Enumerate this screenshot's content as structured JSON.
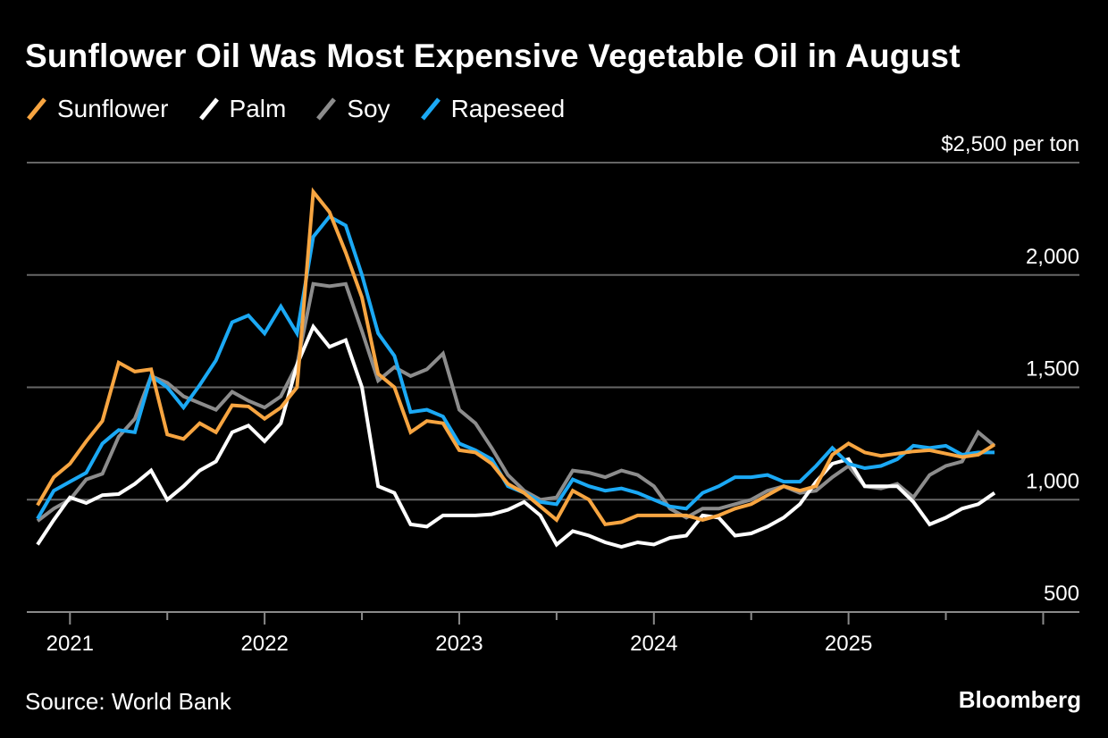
{
  "title": "Sunflower Oil Was Most Expensive Vegetable Oil in August",
  "source": "Source: World Bank",
  "brand": "Bloomberg",
  "colors": {
    "background": "#000000",
    "sunflower": "#f7a541",
    "palm": "#ffffff",
    "soy": "#8c8c8c",
    "rapeseed": "#1ba9f5",
    "grid": "#666666"
  },
  "chart_data": {
    "type": "line",
    "title": "Sunflower Oil Was Most Expensive Vegetable Oil in August",
    "ylabel": "$ per ton",
    "y_unit_label": "$2,500 per ton",
    "ylim": [
      500,
      2500
    ],
    "yticks": [
      500,
      1000,
      1500,
      2000,
      2500
    ],
    "ytick_labels": [
      "500",
      "1,000",
      "1,500",
      "2,000",
      "$2,500 per ton"
    ],
    "x_start": "2020-11",
    "x_end": "2025-08",
    "x_ticks": [
      "2021",
      "2022",
      "2023",
      "2024",
      "2025"
    ],
    "grid": true,
    "legend_position": "top-left",
    "series": [
      {
        "name": "Sunflower",
        "color_key": "sunflower",
        "values": [
          975,
          1100,
          1160,
          1260,
          1350,
          1610,
          1570,
          1580,
          1290,
          1270,
          1340,
          1300,
          1420,
          1415,
          1360,
          1410,
          1500,
          2370,
          2280,
          2100,
          1900,
          1560,
          1500,
          1300,
          1350,
          1340,
          1220,
          1210,
          1160,
          1070,
          1030,
          970,
          910,
          1040,
          1000,
          890,
          900,
          930,
          930,
          930,
          930,
          910,
          930,
          960,
          980,
          1020,
          1060,
          1040,
          1060,
          1200,
          1250,
          1210,
          1195,
          1205,
          1215,
          1220,
          1205,
          1190,
          1200,
          1245
        ]
      },
      {
        "name": "Palm",
        "color_key": "palm",
        "values": [
          800,
          910,
          1010,
          985,
          1020,
          1025,
          1070,
          1130,
          1000,
          1060,
          1130,
          1170,
          1300,
          1330,
          1260,
          1340,
          1600,
          1770,
          1680,
          1710,
          1500,
          1060,
          1030,
          890,
          880,
          930,
          930,
          930,
          935,
          955,
          990,
          930,
          800,
          860,
          840,
          810,
          790,
          810,
          800,
          830,
          840,
          930,
          920,
          840,
          850,
          880,
          920,
          980,
          1080,
          1160,
          1180,
          1060,
          1060,
          1060,
          990,
          890,
          920,
          960,
          980,
          1030
        ]
      },
      {
        "name": "Soy",
        "color_key": "soy",
        "values": [
          905,
          960,
          1000,
          1090,
          1115,
          1280,
          1360,
          1550,
          1520,
          1460,
          1430,
          1400,
          1480,
          1440,
          1410,
          1460,
          1600,
          1960,
          1950,
          1960,
          1750,
          1530,
          1590,
          1550,
          1580,
          1650,
          1400,
          1340,
          1230,
          1110,
          1040,
          1000,
          1010,
          1130,
          1120,
          1100,
          1130,
          1110,
          1060,
          960,
          920,
          960,
          960,
          980,
          1000,
          1040,
          1060,
          1030,
          1040,
          1100,
          1150,
          1060,
          1050,
          1070,
          1010,
          1110,
          1150,
          1170,
          1300,
          1240
        ]
      },
      {
        "name": "Rapeseed",
        "color_key": "rapeseed",
        "values": [
          915,
          1040,
          1080,
          1120,
          1250,
          1310,
          1300,
          1550,
          1500,
          1410,
          1510,
          1620,
          1790,
          1820,
          1740,
          1860,
          1740,
          2170,
          2260,
          2220,
          2000,
          1740,
          1640,
          1390,
          1400,
          1370,
          1250,
          1220,
          1180,
          1060,
          1030,
          990,
          980,
          1090,
          1060,
          1040,
          1050,
          1030,
          1000,
          970,
          960,
          1030,
          1060,
          1100,
          1100,
          1110,
          1080,
          1080,
          1150,
          1230,
          1160,
          1140,
          1150,
          1180,
          1240,
          1230,
          1240,
          1200,
          1210,
          1210
        ]
      }
    ]
  }
}
